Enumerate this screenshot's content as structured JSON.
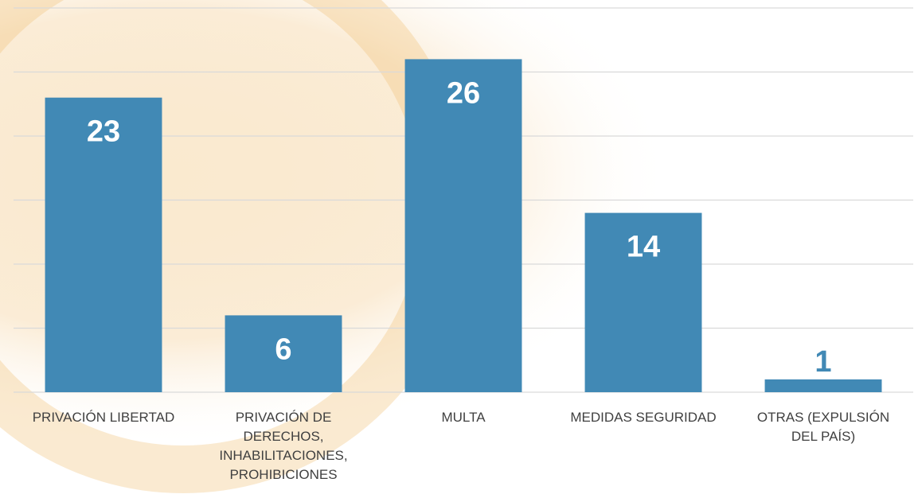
{
  "chart_data": {
    "type": "bar",
    "categories": [
      "PRIVACIÓN LIBERTAD",
      "PRIVACIÓN DE DERECHOS, INHABILITACIONES, PROHIBICIONES",
      "MULTA",
      "MEDIDAS SEGURIDAD",
      "OTRAS (EXPULSIÓN DEL PAÍS)"
    ],
    "values": [
      23,
      6,
      26,
      14,
      1
    ],
    "color": "#4189b5",
    "ylim": [
      0,
      30
    ],
    "yticks": [
      0,
      5,
      10,
      15,
      20,
      25,
      30
    ],
    "grid": true
  }
}
